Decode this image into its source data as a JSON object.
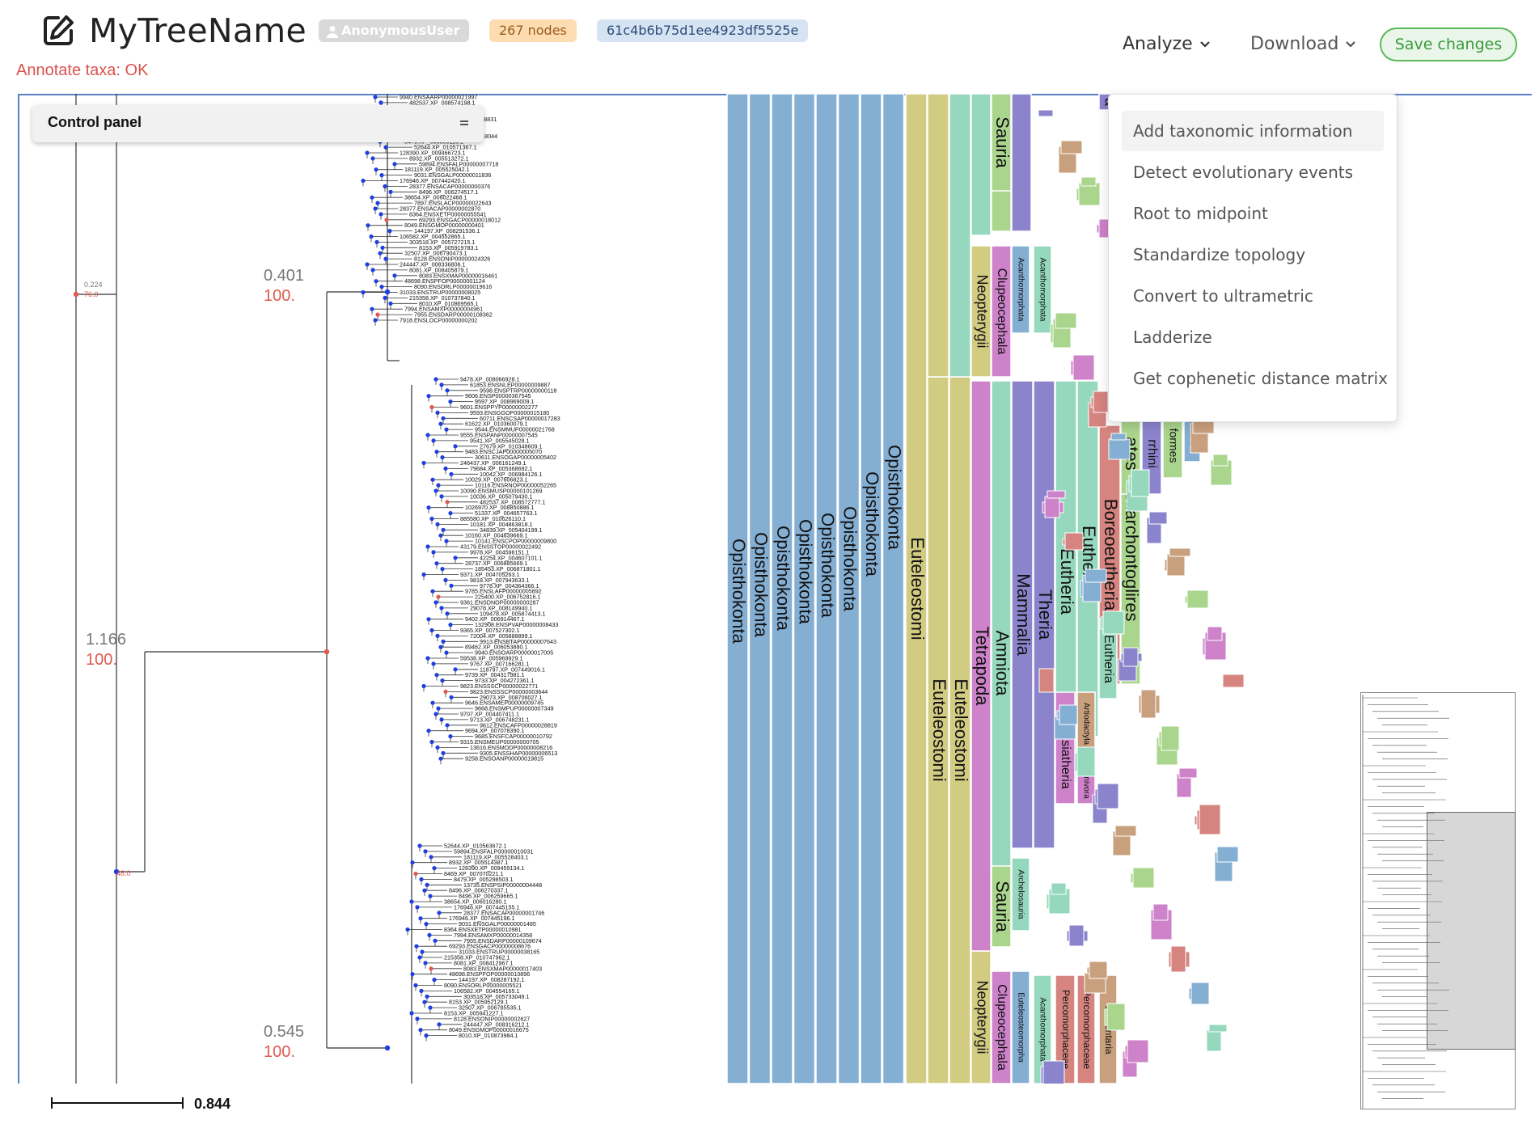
{
  "header": {
    "tree_name": "MyTreeName",
    "user_badge": "AnonymousUser",
    "nodes_badge": "267 nodes",
    "tree_id": "61c4b6b75d1ee4923df5525e",
    "status": "Annotate taxa: OK",
    "analyze_label": "Analyze",
    "download_label": "Download",
    "save_label": "Save changes"
  },
  "control_panel": {
    "title": "Control panel"
  },
  "analyze_menu": {
    "items": [
      "Add taxonomic information",
      "Detect evolutionary events",
      "Root to midpoint",
      "Standardize topology",
      "Convert to ultrametric",
      "Ladderize",
      "Get cophenetic distance matrix"
    ]
  },
  "scale_bar": {
    "value": "0.844"
  },
  "tree": {
    "branch_labels": [
      {
        "length": "0.401",
        "support": "100."
      },
      {
        "length": "1.166",
        "support": "100."
      },
      {
        "length": "0.545",
        "support": "100."
      },
      {
        "length": "0.224",
        "support": "76.0"
      },
      {
        "length": "",
        "support": "48.0"
      }
    ],
    "leaves_top": [
      "9940.ENSAARP00000021997",
      "482537.XP_008574198.1",
      "10000012357",
      "59463.ENSHAP00000008666",
      "13616.ENSMODP00000018831",
      "2000014131",
      "8469.XP_007057889.1",
      "13735.ENSPSIP00000018044",
      "8479.XP_005308116.1",
      "52644.XP_010571367.1",
      "128390.XP_009466723.1",
      "8932.XP_005513272.1",
      "59894.ENSFALP00000007718",
      "181119.XP_005525042.1",
      "9031.ENSGALP00000011836",
      "176946.XP_007442420.1",
      "28377.ENSACAP00000000376",
      "8496.XP_006274517.1",
      "38654.XP_006022468.1",
      "7897.ENSLACP00000022643",
      "28377.ENSACAP00000002870",
      "8364.ENSXETP00000055541",
      "69293.ENSGACP00000018012",
      "8049.ENSGMOP00000000401",
      "144197.XP_008291536.1",
      "106582.XP_004552865.1",
      "303518.XP_005727215.1",
      "8153.XP_005919783.1",
      "32507.XP_006790473.1",
      "8128.ENSONIP00000024326",
      "244447.XP_008336806.1",
      "8081.XP_008405879.1",
      "8083.ENSXMAP00000016461",
      "48698.ENSPFOP00000001124",
      "8090.ENSORLP00000019616",
      "31033.ENSTRUP00000008025",
      "215358.XP_010737840.1",
      "8010.XP_010869565.1",
      "7994.ENSAMXP00000004961",
      "7955.ENSDARP00000108362",
      "7918.ENSLOCP00000000202"
    ],
    "leaves_mid": [
      "9478.XP_008066928.1",
      "61853.ENSNLEP00000009887",
      "9598.ENSPTRP00000000118",
      "9606.ENSP00000367545",
      "9597.XP_008969009.1",
      "9601.ENSPPYP00000002277",
      "9593.ENSGGOP00000015180",
      "60711.ENSCSAP00000017283",
      "61622.XP_010360079.1",
      "9544.ENSMMUP00000021768",
      "9555.ENSPANP00000007545",
      "9541.XP_005545028.1",
      "27679.XP_010348609.1",
      "9483.ENSCJAP00000005070",
      "30611.ENSOGAP00000005402",
      "246437.XP_006161249.1",
      "79684.XP_005368692.1",
      "10042.XP_006984126.1",
      "10029.XP_007606823.1",
      "10116.ENSRNOP00000052265",
      "10090.ENSMUSP00000101269",
      "10036.XP_005079430.1",
      "482537.XP_008572777.1",
      "1026970.XP_008850886.1",
      "51337.XP_004657763.1",
      "885580.XP_010626110.1",
      "10181.XP_004863818.1",
      "34839.XP_005404199.1",
      "10160.XP_004639669.1",
      "10141.ENSCPOP00000009800",
      "43179.ENSSTOP00000022492",
      "9978.XP_004596151.1",
      "42254.XP_004607101.1",
      "28737.XP_006885669.1",
      "185453.XP_006871801.1",
      "9371.XP_004705263.1",
      "9818.XP_007943633.1",
      "9778.XP_004364366.1",
      "9785.ENSLAFP00000005892",
      "225400.XP_006752816.1",
      "9361.ENSDNOP00000000287",
      "29078.XP_008149940.1",
      "109478.XP_005874413.1",
      "9402.XP_006914467.1",
      "132908.ENSPVAP00000008433",
      "9365.XP_007527302.1",
      "72004.XP_005888899.1",
      "9913.ENSBTAP00000007643",
      "89462.XP_006053880.1",
      "9940.ENSOARP00000017005",
      "59538.XP_005969929.1",
      "9767.XP_007166281.1",
      "118797.XP_007449016.1",
      "9739.XP_004317981.1",
      "9733.XP_004272361.1",
      "9823.ENSSSCP00000022771",
      "9823.ENSSSCP00000003644",
      "29073.XP_008706027.1",
      "9646.ENSAMEP00000009745",
      "9668.ENSMPUP00000007349",
      "9707.XP_004407411.1",
      "9713.XP_006748231.1",
      "9612.ENSCAFP00000028819",
      "9694.XP_007078390.1",
      "9685.ENSFCAP00000010792",
      "9315.ENSMEUP00000000705",
      "13616.ENSMODP00000008216",
      "9305.ENSSHAP00000006513",
      "9258.ENSOANP00000019815"
    ],
    "leaves_bottom": [
      "52644.XP_010563672.1",
      "59894.ENSFALP00000010031",
      "181119.XP_005528403.1",
      "8932.XP_005514387.1",
      "128390.XP_009459134.1",
      "8469.XP_007070221.1",
      "8479.XP_005298503.1",
      "13735.ENSPSIP00000004448",
      "8496.XP_006270337.1",
      "8496.XP_006259665.1",
      "38654.XP_006016280.1",
      "176946.XP_007445155.1",
      "28377.ENSACAP00000001746",
      "176946.XP_007445196.1",
      "9031.ENSGALP00000001485",
      "8364.ENSXETP00000010981",
      "7994.ENSAMXP00000014358",
      "7955.ENSDARP00000109674",
      "69293.ENSGACP00000008676",
      "31033.ENSTRUP00000038165",
      "215358.XP_010747962.1",
      "8081.XP_008412967.1",
      "8083.ENSXMAP00000017403",
      "48698.ENSPFOP00000010896",
      "144197.XP_008287192.1",
      "8090.ENSORLP00000005521",
      "106582.XP_004554165.1",
      "303518.XP_005733049.1",
      "8153.XP_005952129.1",
      "32507.XP_006785535.1",
      "8153.XP_005941227.1",
      "8128.ENSONIP00000002627",
      "244447.XP_008316212.1",
      "8049.ENSGMOP00000016675",
      "8010.XP_010873984.1"
    ]
  },
  "taxa_columns": {
    "opisthokonta": "Opisthokonta",
    "euteleostomi": "Euteleostomi",
    "sauria": "Sauria",
    "neopterygii": "Neopterygii",
    "clupeocephala": "Clupeocephala",
    "acanthomorphata": "Acanthomorphata",
    "amniota": "Amniota",
    "tetrapoda": "Tetrapoda",
    "mammalia": "Mammalia",
    "theria": "Theria",
    "eutheria": "Eutheria",
    "boreoeutheria": "Boreoeutheria",
    "euarchontoglires": "Euarchontoglires",
    "laurasiatheria": "Laurasiatheria",
    "archelosauria": "Archelosauria",
    "euteleosteomorpha": "Euteleosteomorpha",
    "percomorphaceae": "Percomorphaceae",
    "ovalentaria": "Ovalentaria",
    "artiodactyla": "Artiodactyla",
    "carnivora": "Carnivora",
    "primates_partial": "ates",
    "rrhini_partial": "rrhini",
    "formes_partial": "formes",
    "hini_partial": "hini",
    "top_partial": "a"
  },
  "colors": {
    "opisthokonta": "#85aed3",
    "euteleostomi": "#d2cb82",
    "mint": "#96d8bd",
    "green": "#a9d58c",
    "pink": "#cd82c9",
    "purple": "#8b84cc",
    "rose": "#d5847f",
    "tan": "#c9a07e",
    "accent_red": "#e05a4f",
    "node_blue": "#1f3fe0"
  }
}
